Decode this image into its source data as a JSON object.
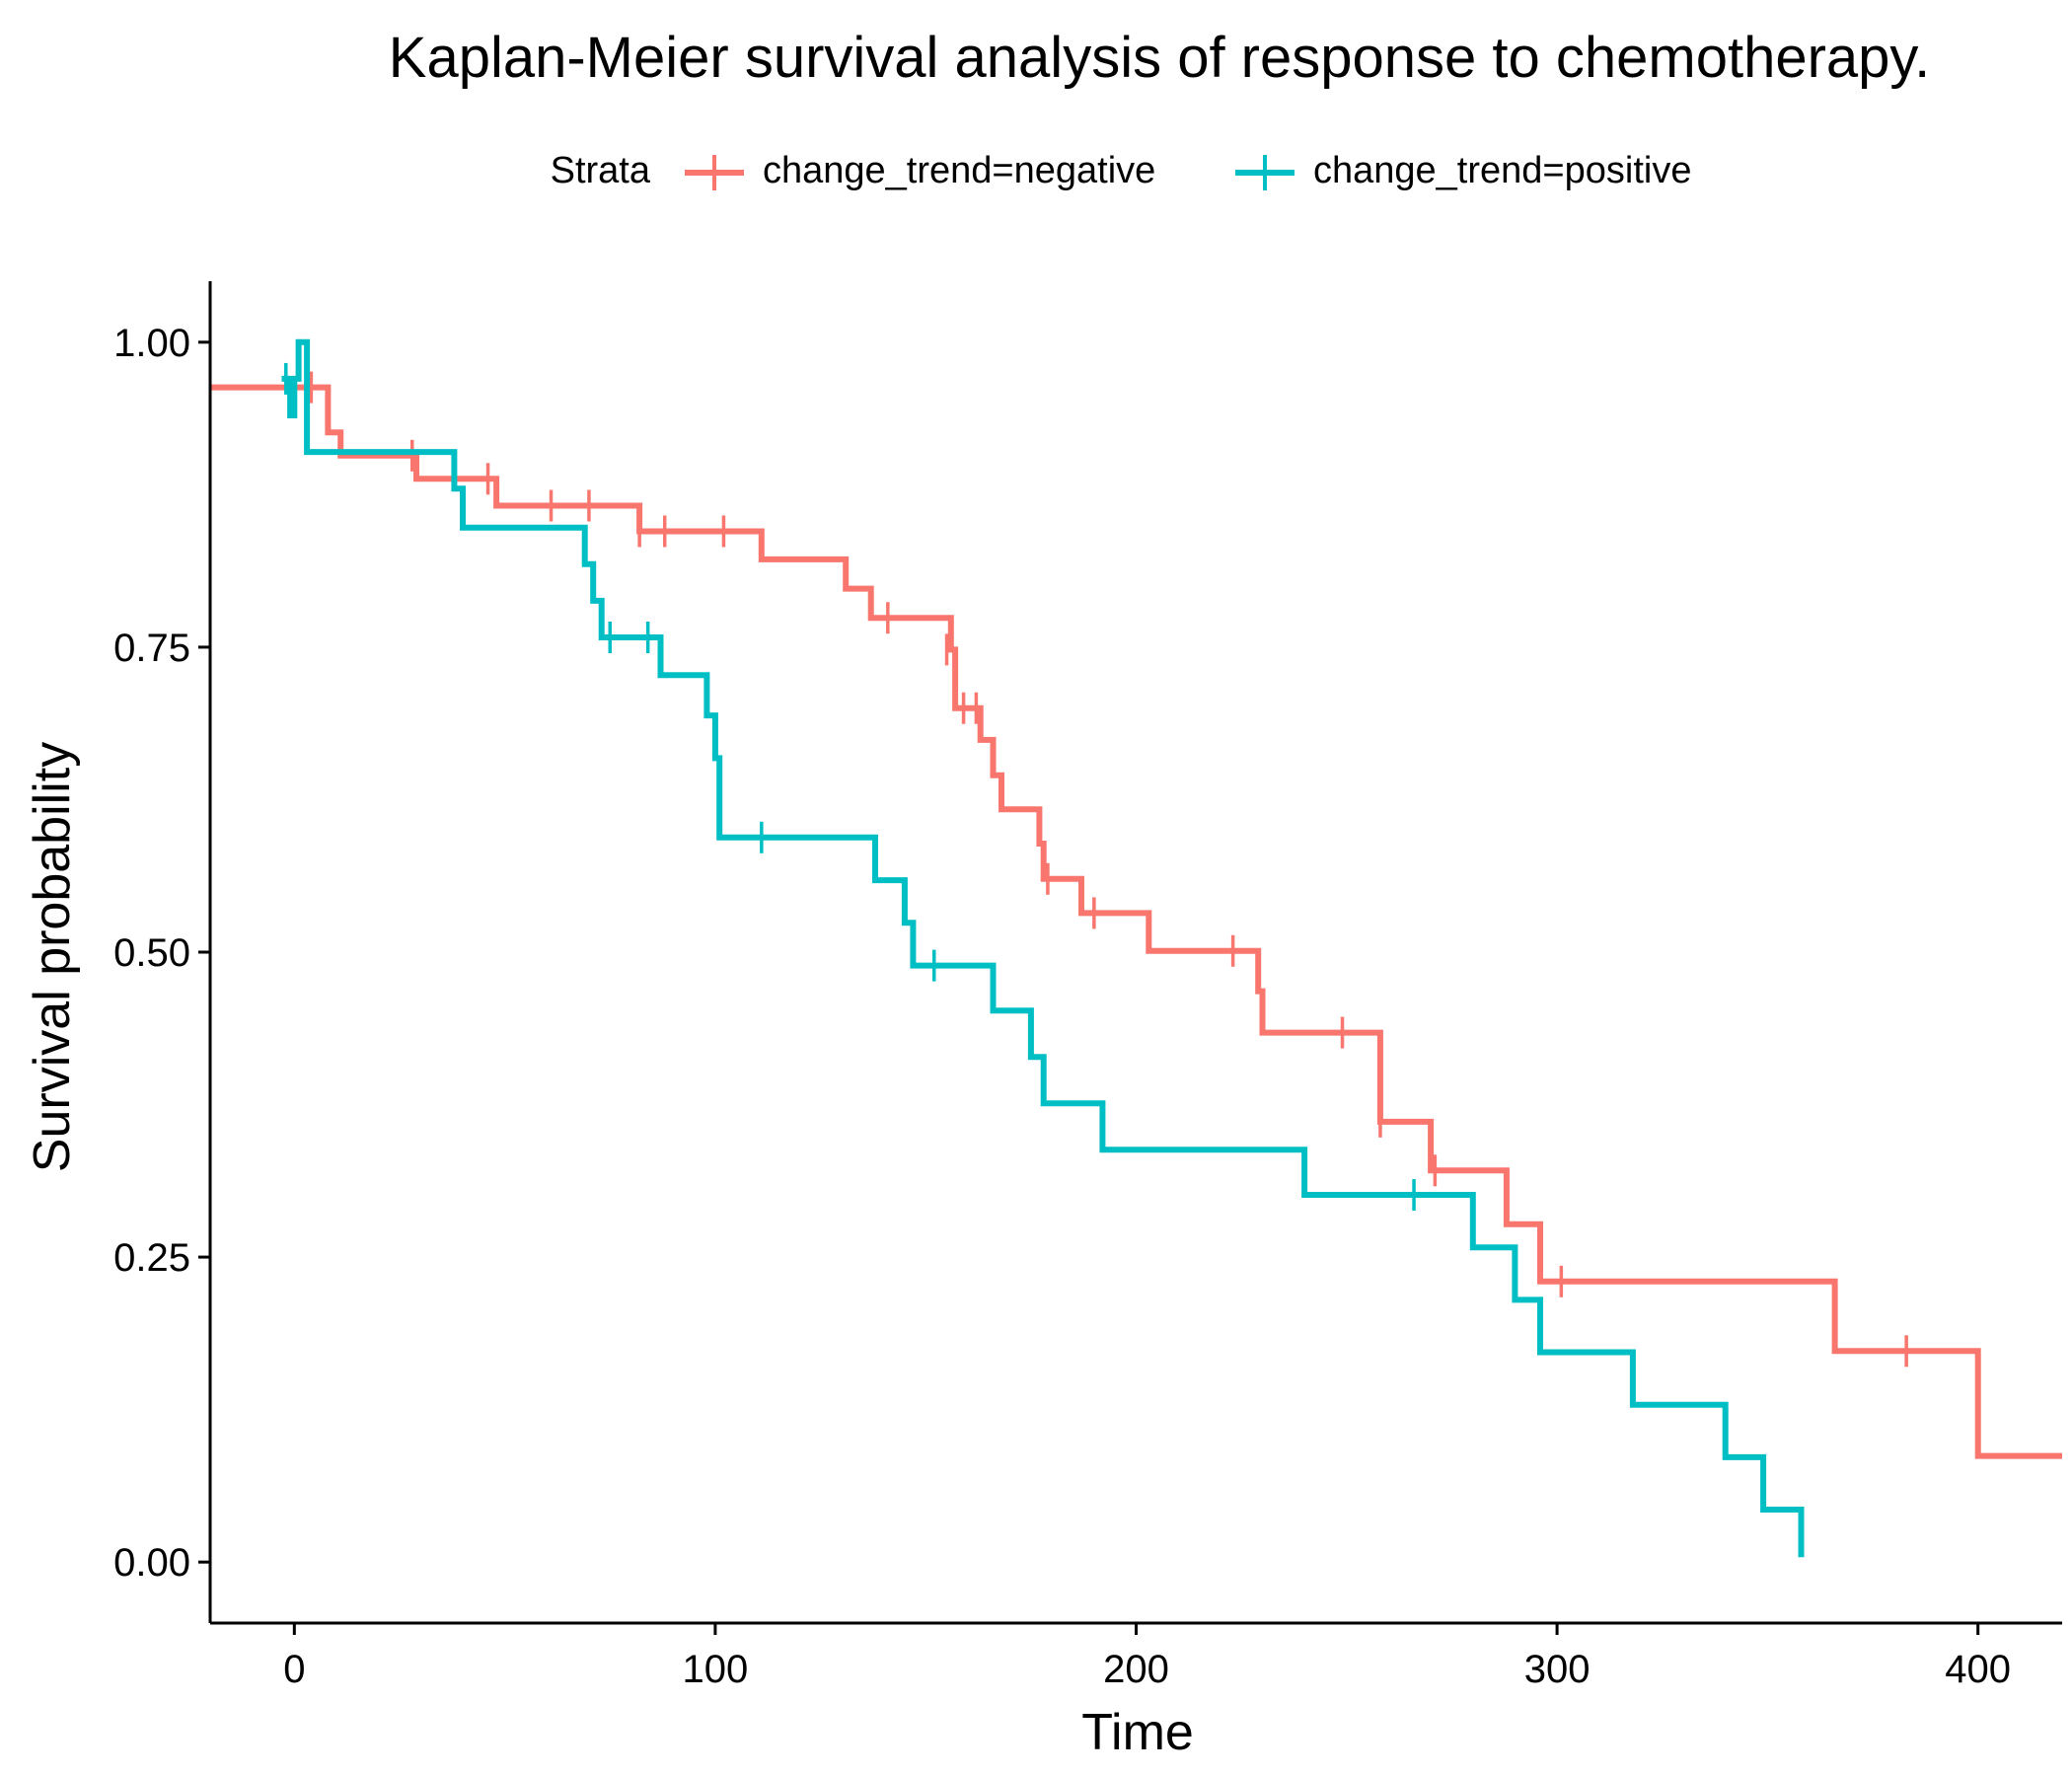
{
  "chart_data": {
    "type": "line",
    "title": "Kaplan-Meier survival analysis of response to chemotherapy.",
    "xlabel": "Time",
    "ylabel": "Survival probability",
    "xlim": [
      -20,
      420
    ],
    "ylim": [
      -0.05,
      1.05
    ],
    "xticks": [
      0,
      100,
      200,
      300,
      400
    ],
    "xtick_labels": [
      "0",
      "100",
      "200",
      "300",
      "400"
    ],
    "yticks": [
      0,
      0.25,
      0.5,
      0.75,
      1.0
    ],
    "ytick_labels": [
      "0.00",
      "0.25",
      "0.50",
      "0.75",
      "1.00"
    ],
    "grid": false,
    "legend": {
      "title": "Strata",
      "position": "top"
    },
    "series": [
      {
        "name": "change_trend=negative",
        "color": "#F8766D",
        "steps": [
          [
            -20,
            0.963
          ],
          [
            5,
            0.963
          ],
          [
            8,
            0.926
          ],
          [
            11,
            0.907
          ],
          [
            29,
            0.888
          ],
          [
            48,
            0.866
          ],
          [
            82,
            0.845
          ],
          [
            111,
            0.822
          ],
          [
            131,
            0.798
          ],
          [
            137,
            0.774
          ],
          [
            156,
            0.748
          ],
          [
            157,
            0.7
          ],
          [
            163,
            0.674
          ],
          [
            166,
            0.645
          ],
          [
            168,
            0.617
          ],
          [
            177,
            0.589
          ],
          [
            178,
            0.56
          ],
          [
            187,
            0.532
          ],
          [
            203,
            0.501
          ],
          [
            229,
            0.468
          ],
          [
            230,
            0.434
          ],
          [
            258,
            0.361
          ],
          [
            270,
            0.321
          ],
          [
            288,
            0.277
          ],
          [
            296,
            0.23
          ],
          [
            366,
            0.173
          ],
          [
            400,
            0.087
          ],
          [
            420,
            0.087
          ]
        ],
        "censors": [
          [
            4,
            0.963
          ],
          [
            28,
            0.907
          ],
          [
            46,
            0.888
          ],
          [
            61,
            0.866
          ],
          [
            70,
            0.866
          ],
          [
            82,
            0.845
          ],
          [
            88,
            0.845
          ],
          [
            102,
            0.845
          ],
          [
            141,
            0.774
          ],
          [
            155,
            0.748
          ],
          [
            159,
            0.7
          ],
          [
            162,
            0.7
          ],
          [
            179,
            0.56
          ],
          [
            190,
            0.532
          ],
          [
            223,
            0.501
          ],
          [
            249,
            0.434
          ],
          [
            258,
            0.361
          ],
          [
            271,
            0.321
          ],
          [
            301,
            0.23
          ],
          [
            383,
            0.173
          ]
        ]
      },
      {
        "name": "change_trend=positive",
        "color": "#00BFC4",
        "steps": [
          [
            -3,
            0.97
          ],
          [
            -1,
            0.94
          ],
          [
            0,
            0.97
          ],
          [
            1,
            1.0
          ],
          [
            3,
            0.91
          ],
          [
            38,
            0.88
          ],
          [
            40,
            0.848
          ],
          [
            69,
            0.818
          ],
          [
            71,
            0.788
          ],
          [
            73,
            0.758
          ],
          [
            87,
            0.727
          ],
          [
            98,
            0.694
          ],
          [
            100,
            0.659
          ],
          [
            101,
            0.594
          ],
          [
            138,
            0.559
          ],
          [
            145,
            0.524
          ],
          [
            147,
            0.489
          ],
          [
            166,
            0.452
          ],
          [
            175,
            0.414
          ],
          [
            178,
            0.376
          ],
          [
            192,
            0.338
          ],
          [
            240,
            0.301
          ],
          [
            280,
            0.258
          ],
          [
            290,
            0.215
          ],
          [
            296,
            0.172
          ],
          [
            318,
            0.129
          ],
          [
            340,
            0.086
          ],
          [
            349,
            0.043
          ],
          [
            358,
            0.004
          ]
        ],
        "censors": [
          [
            -2,
            0.97
          ],
          [
            75,
            0.758
          ],
          [
            84,
            0.758
          ],
          [
            111,
            0.594
          ],
          [
            152,
            0.489
          ],
          [
            266,
            0.301
          ]
        ]
      }
    ]
  }
}
